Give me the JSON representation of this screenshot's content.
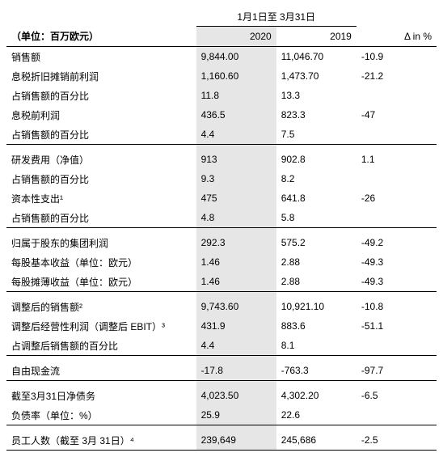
{
  "header": {
    "period": "1月1日至 3月31日",
    "unit": "（单位：百万欧元）",
    "col_2020": "2020",
    "col_2019": "2019",
    "col_delta": "Δ in %"
  },
  "rows": {
    "r0": {
      "label": "销售额",
      "c1": "9,844.00",
      "c2": "11,046.70",
      "c3": "-10.9"
    },
    "r1": {
      "label": "息税折旧摊销前利润",
      "c1": "1,160.60",
      "c2": "1,473.70",
      "c3": "-21.2"
    },
    "r2": {
      "label": "占销售额的百分比",
      "c1": "11.8",
      "c2": "13.3",
      "c3": ""
    },
    "r3": {
      "label": "息税前利润",
      "c1": "436.5",
      "c2": "823.3",
      "c3": "-47"
    },
    "r4": {
      "label": "占销售额的百分比",
      "c1": "4.4",
      "c2": "7.5",
      "c3": ""
    },
    "r5": {
      "label": "研发费用（净值）",
      "c1": "913",
      "c2": "902.8",
      "c3": "1.1"
    },
    "r6": {
      "label": "占销售额的百分比",
      "c1": "9.3",
      "c2": "8.2",
      "c3": ""
    },
    "r7": {
      "label": "资本性支出¹",
      "c1": "475",
      "c2": "641.8",
      "c3": "-26"
    },
    "r8": {
      "label": "占销售额的百分比",
      "c1": "4.8",
      "c2": "5.8",
      "c3": ""
    },
    "r9": {
      "label": "归属于股东的集团利润",
      "c1": "292.3",
      "c2": "575.2",
      "c3": "-49.2"
    },
    "r10": {
      "label": "每股基本收益（单位：欧元）",
      "c1": "1.46",
      "c2": "2.88",
      "c3": "-49.3"
    },
    "r11": {
      "label": "每股摊薄收益（单位：欧元）",
      "c1": "1.46",
      "c2": "2.88",
      "c3": "-49.3"
    },
    "r12": {
      "label": "调整后的销售额²",
      "c1": "9,743.60",
      "c2": "10,921.10",
      "c3": "-10.8"
    },
    "r13": {
      "label": "调整后经营性利润（调整后 EBIT）³",
      "c1": "431.9",
      "c2": "883.6",
      "c3": "-51.1"
    },
    "r14": {
      "label": "占调整后销售额的百分比",
      "c1": "4.4",
      "c2": "8.1",
      "c3": ""
    },
    "r15": {
      "label": "自由现金流",
      "c1": "-17.8",
      "c2": "-763.3",
      "c3": "-97.7"
    },
    "r16": {
      "label": "截至3月31日净债务",
      "c1": "4,023.50",
      "c2": "4,302.20",
      "c3": "-6.5"
    },
    "r17": {
      "label": "负债率（单位：%）",
      "c1": "25.9",
      "c2": "22.6",
      "c3": ""
    },
    "r18": {
      "label": "员工人数（截至 3月 31日）⁴",
      "c1": "239,649",
      "c2": "245,686",
      "c3": "-2.5"
    }
  }
}
